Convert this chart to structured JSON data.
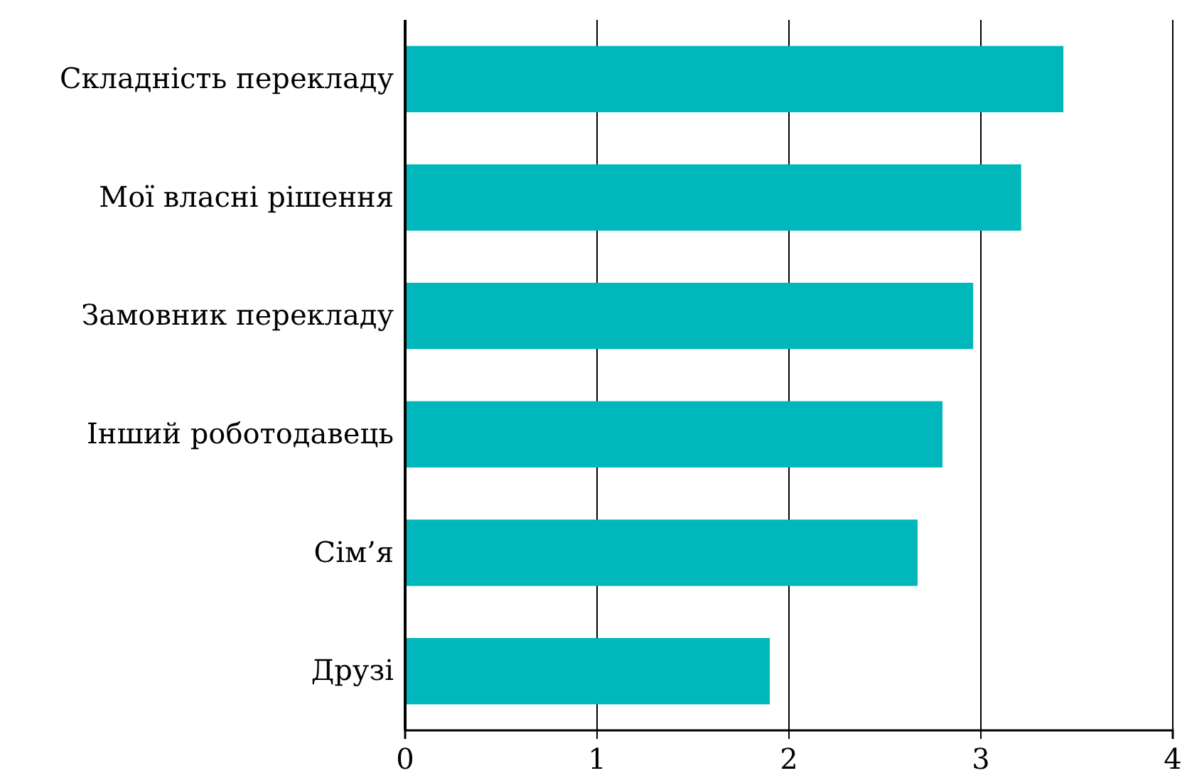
{
  "chart_data": {
    "type": "bar",
    "orientation": "horizontal",
    "categories": [
      "Складність перекладу",
      "Мої власні рішення",
      "Замовник перекладу",
      "Інший роботодавець",
      "Сім’я",
      "Друзі"
    ],
    "values": [
      3.43,
      3.21,
      2.96,
      2.8,
      2.67,
      1.9
    ],
    "color": "#00b7bb",
    "xlim": [
      0,
      4
    ],
    "xticks": [
      0,
      1,
      2,
      3,
      4
    ],
    "grid": "x"
  }
}
